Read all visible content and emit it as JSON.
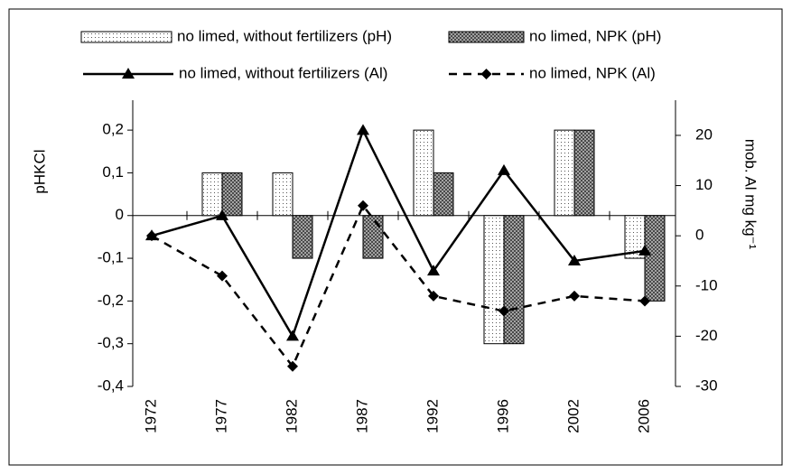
{
  "chart_data": {
    "type": "bar",
    "y_label": "pHKCl",
    "y2_label": "mob. Al mg kg⁻¹",
    "categories": [
      "1972",
      "1977",
      "1982",
      "1987",
      "1992",
      "1996",
      "2002",
      "2006"
    ],
    "series": [
      {
        "name": "no limed, without fertilizers (pH)",
        "type": "bar",
        "pattern": "dotted",
        "color": "#000000",
        "values": [
          0,
          0.1,
          0.1,
          0,
          0.2,
          -0.3,
          0.2,
          -0.1
        ]
      },
      {
        "name": "no limed, NPK (pH)",
        "type": "bar",
        "pattern": "crosshatch",
        "color": "#000000",
        "values": [
          0,
          0.1,
          -0.1,
          -0.1,
          0.1,
          -0.3,
          0.2,
          -0.2
        ]
      },
      {
        "name": "no limed, without fertilizers (Al)",
        "type": "line",
        "axis": "y2",
        "marker": "triangle",
        "dashed": false,
        "color": "#000000",
        "values": [
          0,
          4,
          -20,
          21,
          -7,
          13,
          -5,
          -3
        ]
      },
      {
        "name": "no limed, NPK (Al)",
        "type": "line",
        "axis": "y2",
        "marker": "diamond",
        "dashed": true,
        "color": "#000000",
        "values": [
          0,
          -8,
          -26,
          6,
          -12,
          -15,
          -12,
          -13
        ]
      }
    ],
    "ylim": [
      -0.4,
      0.27
    ],
    "yticks": [
      {
        "value": -0.4,
        "label": "-0,4"
      },
      {
        "value": -0.3,
        "label": "-0,3"
      },
      {
        "value": -0.2,
        "label": "-0,2"
      },
      {
        "value": -0.1,
        "label": "-0,1"
      },
      0,
      {
        "value": 0.1,
        "label": "0,1"
      },
      {
        "value": 0.2,
        "label": "0,2"
      }
    ],
    "y2lim": [
      -30,
      27
    ],
    "y2ticks": [
      -30,
      -20,
      -10,
      0,
      10,
      20
    ],
    "grid": false
  }
}
